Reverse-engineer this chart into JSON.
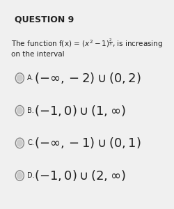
{
  "title": "QUESTION 9",
  "question_text": "The function f(x) = $\\left(x^2-1\\right)^{\\frac{2}{3}}$, is increasing on the interval",
  "function_display": "(x² − 1)",
  "exponent_num": "2",
  "exponent_den": "3",
  "options": [
    {
      "label": "A.",
      "text": "$(-\\infty, -2)\\cup(0,2)$"
    },
    {
      "label": "B.",
      "text": "$(-1,0) \\cup (1, \\infty)$"
    },
    {
      "label": "C.",
      "text": "$(-\\infty, -1)\\cup(0,1)$"
    },
    {
      "label": "D.",
      "text": "$(-1,0) \\cup (2, \\infty)$"
    }
  ],
  "bg_color": "#f5f5f5",
  "text_color": "#222222",
  "circle_color": "#aaaaaa",
  "circle_filled_color": "#cccccc",
  "option_fontsize": 13,
  "title_fontsize": 9,
  "question_fontsize": 7.5
}
